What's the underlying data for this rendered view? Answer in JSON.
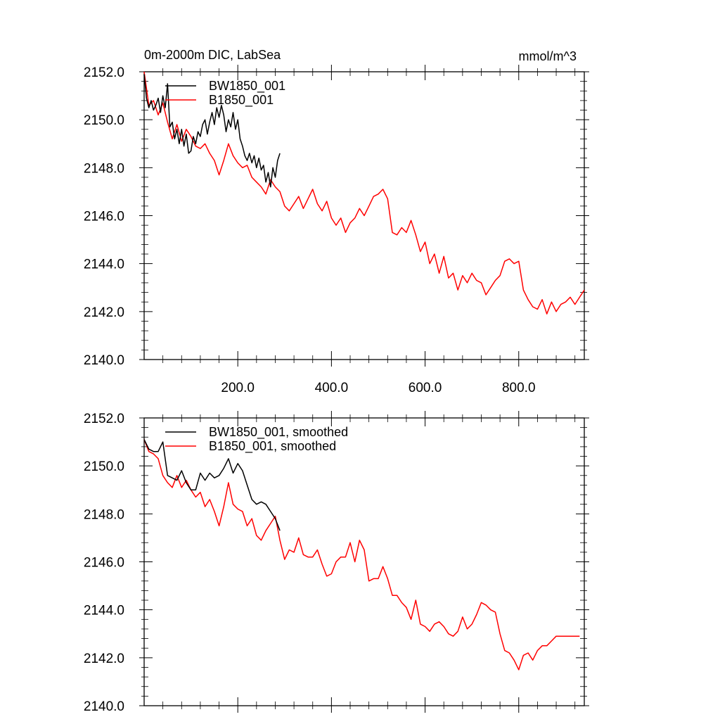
{
  "figure": {
    "title_left": "0m-2000m DIC, LabSea",
    "title_right": "mmol/m^3"
  },
  "chart_data": [
    {
      "type": "line",
      "title": "0m-2000m DIC, LabSea",
      "units": "mmol/m^3",
      "xlim": [
        0,
        940
      ],
      "ylim": [
        2140,
        2152
      ],
      "x_ticks": [
        200,
        400,
        600,
        800
      ],
      "x_tick_labels": [
        "200.0",
        "400.0",
        "600.0",
        "800.0"
      ],
      "y_ticks": [
        2140,
        2142,
        2144,
        2146,
        2148,
        2150,
        2152
      ],
      "y_tick_labels": [
        "2140.0",
        "2142.0",
        "2144.0",
        "2146.0",
        "2148.0",
        "2150.0",
        "2152.0"
      ],
      "legend_position": "top-left",
      "series": [
        {
          "name": "BW1850_001",
          "color": "#000000",
          "x": [
            0,
            5,
            10,
            15,
            20,
            25,
            30,
            35,
            40,
            45,
            50,
            55,
            60,
            65,
            70,
            75,
            80,
            85,
            90,
            95,
            100,
            105,
            110,
            115,
            120,
            125,
            130,
            135,
            140,
            145,
            150,
            155,
            160,
            165,
            170,
            175,
            180,
            185,
            190,
            195,
            200,
            205,
            210,
            215,
            220,
            225,
            230,
            235,
            240,
            245,
            250,
            255,
            260,
            265,
            270,
            275,
            280,
            285,
            290
          ],
          "values": [
            2151.9,
            2150.9,
            2150.5,
            2150.8,
            2150.4,
            2150.6,
            2150.9,
            2150.3,
            2151.0,
            2150.5,
            2151.5,
            2149.7,
            2149.9,
            2149.2,
            2149.6,
            2149.0,
            2149.6,
            2148.9,
            2149.4,
            2148.6,
            2148.7,
            2149.3,
            2149.0,
            2149.5,
            2149.3,
            2149.8,
            2150.0,
            2149.4,
            2149.9,
            2150.3,
            2149.8,
            2150.5,
            2150.1,
            2150.6,
            2150.2,
            2149.5,
            2150.0,
            2149.7,
            2150.3,
            2149.6,
            2150.0,
            2149.2,
            2148.9,
            2148.5,
            2148.3,
            2148.6,
            2148.2,
            2148.5,
            2148.0,
            2148.4,
            2147.9,
            2148.1,
            2147.4,
            2147.8,
            2147.2,
            2148.0,
            2147.6,
            2148.3,
            2148.6
          ]
        },
        {
          "name": "B1850_001",
          "color": "#ff0000",
          "x": [
            0,
            10,
            20,
            30,
            40,
            50,
            60,
            70,
            80,
            90,
            100,
            110,
            120,
            130,
            140,
            150,
            160,
            170,
            180,
            190,
            200,
            210,
            220,
            230,
            240,
            250,
            260,
            270,
            280,
            290,
            300,
            310,
            320,
            330,
            340,
            350,
            360,
            370,
            380,
            390,
            400,
            410,
            420,
            430,
            440,
            450,
            460,
            470,
            480,
            490,
            500,
            510,
            520,
            530,
            540,
            550,
            560,
            570,
            580,
            590,
            600,
            610,
            620,
            630,
            640,
            650,
            660,
            670,
            680,
            690,
            700,
            710,
            720,
            730,
            740,
            750,
            760,
            770,
            780,
            790,
            800,
            810,
            820,
            830,
            840,
            850,
            860,
            870,
            880,
            890,
            900,
            910,
            920,
            930,
            940
          ],
          "values": [
            2152.0,
            2150.6,
            2150.8,
            2150.2,
            2150.7,
            2149.9,
            2149.2,
            2149.8,
            2149.1,
            2149.6,
            2149.3,
            2148.9,
            2148.8,
            2149.0,
            2148.6,
            2148.3,
            2147.7,
            2148.3,
            2149.0,
            2148.5,
            2148.2,
            2148.0,
            2148.1,
            2147.6,
            2147.4,
            2147.2,
            2146.9,
            2147.5,
            2147.2,
            2147.0,
            2146.4,
            2146.2,
            2146.5,
            2146.8,
            2146.3,
            2146.7,
            2147.1,
            2146.5,
            2146.2,
            2146.6,
            2145.9,
            2145.6,
            2145.9,
            2145.3,
            2145.7,
            2145.9,
            2146.3,
            2146.0,
            2146.4,
            2146.8,
            2146.9,
            2147.1,
            2146.7,
            2145.3,
            2145.2,
            2145.5,
            2145.3,
            2145.8,
            2145.2,
            2144.5,
            2144.9,
            2144.0,
            2144.4,
            2143.6,
            2144.3,
            2143.4,
            2143.6,
            2142.9,
            2143.5,
            2143.2,
            2143.6,
            2143.3,
            2143.2,
            2142.7,
            2143.0,
            2143.3,
            2143.5,
            2144.1,
            2144.2,
            2144.0,
            2144.1,
            2142.9,
            2142.5,
            2142.2,
            2142.1,
            2142.5,
            2141.9,
            2142.4,
            2142.0,
            2142.3,
            2142.4,
            2142.6,
            2142.3,
            2142.6,
            2142.9
          ]
        }
      ]
    },
    {
      "type": "line",
      "xlim": [
        0,
        940
      ],
      "ylim": [
        2140,
        2152
      ],
      "x_ticks": [
        200,
        400,
        600,
        800
      ],
      "x_tick_labels": [],
      "y_ticks": [
        2140,
        2142,
        2144,
        2146,
        2148,
        2150,
        2152
      ],
      "y_tick_labels": [
        "2140.0",
        "2142.0",
        "2144.0",
        "2146.0",
        "2148.0",
        "2150.0",
        "2152.0"
      ],
      "legend_position": "top-left",
      "series": [
        {
          "name": "BW1850_001, smoothed",
          "color": "#000000",
          "x": [
            0,
            10,
            20,
            30,
            40,
            50,
            60,
            70,
            80,
            90,
            100,
            110,
            120,
            130,
            140,
            150,
            160,
            170,
            180,
            190,
            200,
            210,
            220,
            230,
            240,
            250,
            260,
            270,
            280,
            290
          ],
          "values": [
            2151.1,
            2150.7,
            2150.6,
            2150.6,
            2151.0,
            2149.6,
            2149.5,
            2149.4,
            2149.8,
            2149.3,
            2149.0,
            2149.0,
            2149.7,
            2149.4,
            2149.7,
            2149.5,
            2149.6,
            2149.9,
            2150.3,
            2149.7,
            2150.1,
            2149.8,
            2149.2,
            2148.6,
            2148.4,
            2148.5,
            2148.4,
            2148.1,
            2147.8,
            2147.3
          ]
        },
        {
          "name": "B1850_001, smoothed",
          "color": "#ff0000",
          "x": [
            0,
            10,
            20,
            30,
            40,
            50,
            60,
            70,
            80,
            90,
            100,
            110,
            120,
            130,
            140,
            150,
            160,
            170,
            180,
            190,
            200,
            210,
            220,
            230,
            240,
            250,
            260,
            270,
            280,
            290,
            300,
            310,
            320,
            330,
            340,
            350,
            360,
            370,
            380,
            390,
            400,
            410,
            420,
            430,
            440,
            450,
            460,
            470,
            480,
            490,
            500,
            510,
            520,
            530,
            540,
            550,
            560,
            570,
            580,
            590,
            600,
            610,
            620,
            630,
            640,
            650,
            660,
            670,
            680,
            690,
            700,
            710,
            720,
            730,
            740,
            750,
            760,
            770,
            780,
            790,
            800,
            810,
            820,
            830,
            840,
            850,
            860,
            870,
            880,
            890,
            900,
            910,
            920,
            930
          ],
          "values": [
            2151.1,
            2150.6,
            2150.5,
            2150.3,
            2149.6,
            2149.3,
            2149.1,
            2149.6,
            2149.1,
            2149.4,
            2149.0,
            2148.7,
            2148.9,
            2148.3,
            2148.6,
            2148.1,
            2147.5,
            2148.3,
            2149.3,
            2148.4,
            2148.2,
            2148.1,
            2147.5,
            2147.8,
            2147.1,
            2146.9,
            2147.3,
            2147.6,
            2147.9,
            2146.9,
            2146.1,
            2146.5,
            2146.4,
            2147.0,
            2146.3,
            2146.2,
            2146.2,
            2146.5,
            2145.9,
            2145.4,
            2145.5,
            2146.0,
            2146.2,
            2146.2,
            2146.8,
            2146.0,
            2146.9,
            2146.5,
            2145.2,
            2145.3,
            2145.3,
            2145.8,
            2145.3,
            2144.6,
            2144.6,
            2144.3,
            2144.1,
            2143.6,
            2144.4,
            2143.4,
            2143.3,
            2143.1,
            2143.4,
            2143.5,
            2143.3,
            2143.0,
            2142.9,
            2143.1,
            2143.7,
            2143.2,
            2143.4,
            2143.8,
            2144.3,
            2144.2,
            2144.0,
            2143.9,
            2143.0,
            2142.3,
            2142.2,
            2141.9,
            2141.5,
            2142.1,
            2142.2,
            2141.9,
            2142.3,
            2142.5,
            2142.5,
            2142.7,
            2142.9,
            2142.9,
            2142.9,
            2142.9,
            2142.9,
            2142.9
          ]
        }
      ]
    }
  ]
}
